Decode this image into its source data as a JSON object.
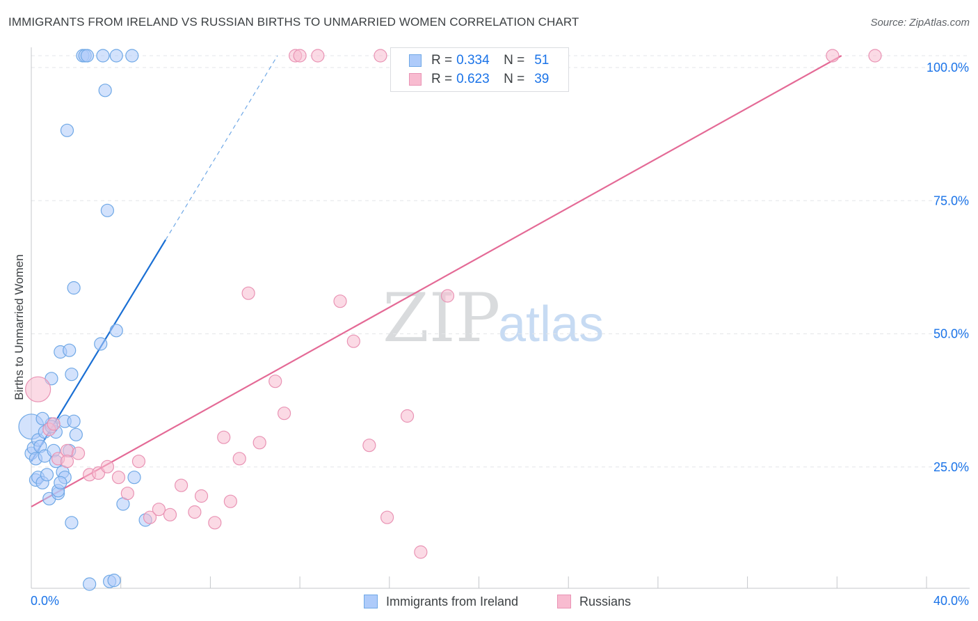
{
  "title": "IMMIGRANTS FROM IRELAND VS RUSSIAN BIRTHS TO UNMARRIED WOMEN CORRELATION CHART",
  "source": "Source: ZipAtlas.com",
  "watermark": {
    "zip": "ZIP",
    "atlas": "atlas"
  },
  "legend": {
    "r_label": "R =",
    "n_label": "N =",
    "rows": [
      {
        "name": "Immigrants from Ireland",
        "r": "0.334",
        "n": "51"
      },
      {
        "name": "Russians",
        "r": "0.623",
        "n": "39"
      }
    ]
  },
  "colors": {
    "ireland_fill": "#aecbfa",
    "ireland_stroke": "#6fa8e6",
    "ireland_line": "#1a6fd4",
    "russian_fill": "#f8bbd0",
    "russian_stroke": "#e993b4",
    "russian_line": "#e46a96",
    "axis_value_color": "#1a73e8"
  },
  "chart_data": {
    "type": "scatter",
    "title": "IMMIGRANTS FROM IRELAND VS RUSSIAN BIRTHS TO UNMARRIED WOMEN CORRELATION CHART",
    "xlabel": "",
    "ylabel": "Births to Unmarried Women",
    "xlim": [
      0,
      40
    ],
    "ylim": [
      0,
      100
    ],
    "x_tick_labels": [
      "0.0%",
      "40.0%"
    ],
    "y_ticks": [
      25,
      50,
      75,
      100
    ],
    "y_tick_labels": [
      "25.0%",
      "50.0%",
      "75.0%",
      "100.0%"
    ],
    "grid": true,
    "series": [
      {
        "name": "Immigrants from Ireland",
        "r": 0.334,
        "n": 51,
        "points": [
          [
            0.0,
            30.5,
            2
          ],
          [
            0.0,
            25.5,
            1
          ],
          [
            0.1,
            26.5,
            1
          ],
          [
            0.2,
            20.5,
            1
          ],
          [
            0.2,
            24.5,
            1
          ],
          [
            0.3,
            28.0,
            1
          ],
          [
            0.3,
            21.0,
            1
          ],
          [
            0.4,
            26.8,
            1
          ],
          [
            0.5,
            20.0,
            1
          ],
          [
            0.6,
            25.0,
            1
          ],
          [
            0.6,
            29.5,
            1
          ],
          [
            0.7,
            21.5,
            1
          ],
          [
            0.8,
            17.0,
            1
          ],
          [
            0.9,
            31.0,
            1
          ],
          [
            0.9,
            39.5,
            1
          ],
          [
            1.0,
            26.0,
            1
          ],
          [
            1.1,
            29.5,
            1
          ],
          [
            1.1,
            24.0,
            1
          ],
          [
            1.2,
            18.0,
            1
          ],
          [
            1.2,
            18.5,
            1
          ],
          [
            1.3,
            44.5,
            1
          ],
          [
            1.4,
            22.0,
            1
          ],
          [
            1.5,
            31.5,
            1
          ],
          [
            1.5,
            21.0,
            1
          ],
          [
            1.6,
            86.0,
            1
          ],
          [
            1.7,
            26.0,
            1
          ],
          [
            1.7,
            44.8,
            1
          ],
          [
            1.8,
            40.3,
            1
          ],
          [
            1.8,
            12.5,
            1
          ],
          [
            1.9,
            31.5,
            1
          ],
          [
            1.9,
            56.5,
            1
          ],
          [
            2.0,
            29.0,
            1
          ],
          [
            2.3,
            100.0,
            1
          ],
          [
            2.4,
            100.0,
            1
          ],
          [
            2.5,
            100.0,
            1
          ],
          [
            2.6,
            1.0,
            1
          ],
          [
            3.1,
            46.0,
            1
          ],
          [
            3.2,
            100.0,
            1
          ],
          [
            3.3,
            93.5,
            1
          ],
          [
            3.4,
            71.0,
            1
          ],
          [
            3.5,
            1.5,
            1
          ],
          [
            3.7,
            1.7,
            1
          ],
          [
            3.8,
            100.0,
            1
          ],
          [
            3.8,
            48.5,
            1
          ],
          [
            4.1,
            16.0,
            1
          ],
          [
            4.5,
            100.0,
            1
          ],
          [
            4.6,
            21.0,
            1
          ],
          [
            5.1,
            13.0,
            1
          ],
          [
            0.9,
            30.5,
            1
          ],
          [
            1.3,
            20.0,
            1
          ],
          [
            0.5,
            32.0,
            1
          ]
        ],
        "trend": {
          "x0": 0.0,
          "y0": 24.0,
          "x1": 6.0,
          "y1": 65.5,
          "dashed_to": [
            11.0,
            100.0
          ]
        }
      },
      {
        "name": "Russians",
        "r": 0.623,
        "n": 39,
        "points": [
          [
            0.3,
            37.5,
            2
          ],
          [
            0.8,
            30.0,
            1
          ],
          [
            1.0,
            31.0,
            1
          ],
          [
            1.2,
            24.5,
            1
          ],
          [
            1.6,
            26.0,
            1
          ],
          [
            1.6,
            24.0,
            1
          ],
          [
            2.1,
            25.5,
            1
          ],
          [
            2.6,
            21.5,
            1
          ],
          [
            3.0,
            21.8,
            1
          ],
          [
            3.4,
            23.0,
            1
          ],
          [
            3.9,
            21.0,
            1
          ],
          [
            4.3,
            18.0,
            1
          ],
          [
            4.8,
            24.0,
            1
          ],
          [
            5.3,
            13.5,
            1
          ],
          [
            5.7,
            15.0,
            1
          ],
          [
            6.2,
            14.0,
            1
          ],
          [
            6.7,
            19.5,
            1
          ],
          [
            7.3,
            14.5,
            1
          ],
          [
            7.6,
            17.5,
            1
          ],
          [
            8.2,
            12.5,
            1
          ],
          [
            8.6,
            28.5,
            1
          ],
          [
            8.9,
            16.5,
            1
          ],
          [
            9.3,
            24.5,
            1
          ],
          [
            9.7,
            55.5,
            1
          ],
          [
            10.2,
            27.5,
            1
          ],
          [
            10.9,
            39.0,
            1
          ],
          [
            11.3,
            33.0,
            1
          ],
          [
            11.8,
            100.0,
            1
          ],
          [
            12.0,
            100.0,
            1
          ],
          [
            12.8,
            100.0,
            1
          ],
          [
            13.8,
            54.0,
            1
          ],
          [
            14.4,
            46.5,
            1
          ],
          [
            15.1,
            27.0,
            1
          ],
          [
            15.6,
            100.0,
            1
          ],
          [
            15.9,
            13.5,
            1
          ],
          [
            16.8,
            32.5,
            1
          ],
          [
            17.4,
            7.0,
            1
          ],
          [
            18.6,
            55.0,
            1
          ],
          [
            35.8,
            100.0,
            1
          ],
          [
            37.7,
            100.0,
            1
          ]
        ],
        "trend": {
          "x0": 0.0,
          "y0": 15.5,
          "x1": 36.2,
          "y1": 100.0
        }
      }
    ]
  }
}
